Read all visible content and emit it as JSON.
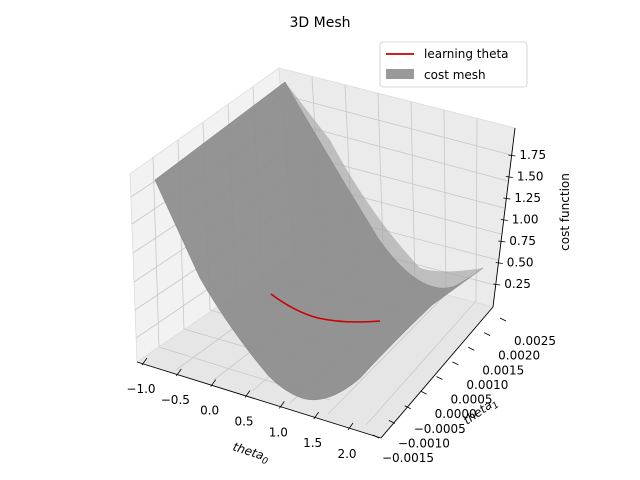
{
  "chart_data": {
    "type": "surface3d",
    "title": "3D Mesh",
    "axes": {
      "x": {
        "label_base": "theta",
        "label_sub": "0",
        "range": [
          -1.0,
          2.0
        ],
        "ticks": [
          "−1.0",
          "−0.5",
          "0.0",
          "0.5",
          "1.0",
          "1.5",
          "2.0"
        ]
      },
      "y": {
        "label_base": "theta",
        "label_sub": "1",
        "range": [
          -0.0015,
          0.0025
        ],
        "ticks": [
          "−0.0015",
          "−0.0010",
          "−0.0005",
          "0.0000",
          "0.0005",
          "0.0010",
          "0.0015",
          "0.0020",
          "0.0025"
        ]
      },
      "z": {
        "label": "cost function",
        "ticks": [
          "0.25",
          "0.50",
          "0.75",
          "1.00",
          "1.25",
          "1.50",
          "1.75"
        ]
      }
    },
    "legend": {
      "placement": "top-right",
      "entries": [
        {
          "label": "learning theta",
          "kind": "line",
          "color": "#cc0000"
        },
        {
          "label": "cost mesh",
          "kind": "patch",
          "color": "#999999"
        }
      ]
    },
    "series": [
      {
        "kind": "surface",
        "color": "#8c8c8c",
        "description_note": ""
      },
      {
        "kind": "path",
        "color": "#cc0000"
      }
    ],
    "grid": true
  }
}
